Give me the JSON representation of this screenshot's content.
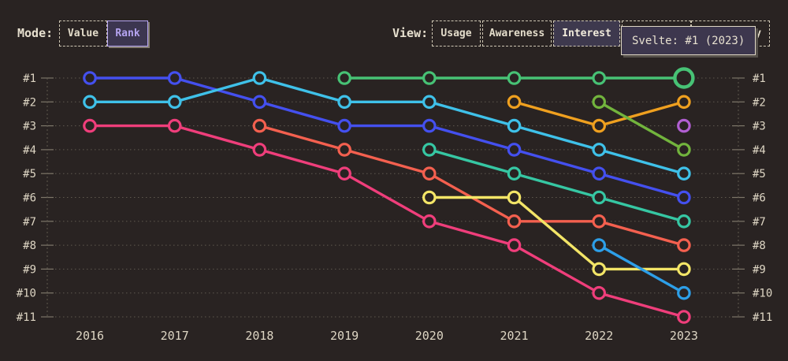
{
  "header": {
    "mode": {
      "label": "Mode:",
      "options": [
        {
          "label": "Value",
          "active": false
        },
        {
          "label": "Rank",
          "active": true
        }
      ]
    },
    "view": {
      "label": "View:",
      "options": [
        {
          "label": "Usage",
          "active": false
        },
        {
          "label": "Awareness",
          "active": false
        },
        {
          "label": "Interest",
          "active": true
        },
        {
          "label": "Retention",
          "active": false
        },
        {
          "label": "Positivity",
          "active": false
        }
      ]
    }
  },
  "tooltip": {
    "text": "Svelte: #1 (2023)"
  },
  "colors": {
    "background": "#292322",
    "text": "#ded6c4",
    "grid": "#5f594f",
    "tick": "#7d7669",
    "accent_purple": "#b5a4f1",
    "tooltip_bg": "#3d374e",
    "tooltip_border": "#ded6c4"
  },
  "chart_data": {
    "type": "line",
    "subtype": "bump-rank-chart",
    "x": [
      2016,
      2017,
      2018,
      2019,
      2020,
      2021,
      2022,
      2023
    ],
    "x_labels": [
      "2016",
      "2017",
      "2018",
      "2019",
      "2020",
      "2021",
      "2022",
      "2023"
    ],
    "y_tick_labels": [
      "#1",
      "#2",
      "#3",
      "#4",
      "#5",
      "#6",
      "#7",
      "#8",
      "#9",
      "#10",
      "#11"
    ],
    "ylim": [
      1,
      11
    ],
    "y_axis_inverted": true,
    "grid": "dotted horizontal rank lines, dotted vertical edge axes, double-sided rank labels",
    "legend_position": "none (hover tooltip only)",
    "highlight": {
      "series": "svelte-green",
      "year": 2023,
      "rank": 1,
      "tooltip": "Svelte: #1 (2023)"
    },
    "series": [
      {
        "id": "indigo",
        "color": "#4450ef",
        "points": [
          [
            2016,
            1
          ],
          [
            2017,
            1
          ],
          [
            2018,
            2
          ],
          [
            2019,
            3
          ],
          [
            2020,
            3
          ],
          [
            2021,
            4
          ],
          [
            2022,
            5
          ],
          [
            2023,
            6
          ]
        ]
      },
      {
        "id": "cyan",
        "color": "#3fc1e9",
        "points": [
          [
            2016,
            2
          ],
          [
            2017,
            2
          ],
          [
            2018,
            1
          ],
          [
            2019,
            2
          ],
          [
            2020,
            2
          ],
          [
            2021,
            3
          ],
          [
            2022,
            4
          ],
          [
            2023,
            5
          ]
        ]
      },
      {
        "id": "pink",
        "color": "#ef3e7b",
        "points": [
          [
            2016,
            3
          ],
          [
            2017,
            3
          ],
          [
            2018,
            4
          ],
          [
            2019,
            5
          ],
          [
            2020,
            7
          ],
          [
            2021,
            8
          ],
          [
            2022,
            10
          ],
          [
            2023,
            11
          ]
        ]
      },
      {
        "id": "salmon",
        "color": "#f4604f",
        "points": [
          [
            2018,
            3
          ],
          [
            2019,
            4
          ],
          [
            2020,
            5
          ],
          [
            2021,
            7
          ],
          [
            2022,
            7
          ],
          [
            2023,
            8
          ]
        ]
      },
      {
        "id": "orange",
        "color": "#efa01f",
        "points": [
          [
            2021,
            2
          ],
          [
            2022,
            3
          ],
          [
            2023,
            2
          ]
        ]
      },
      {
        "id": "lime",
        "color": "#72b43d",
        "points": [
          [
            2022,
            2
          ],
          [
            2023,
            4
          ]
        ]
      },
      {
        "id": "teal",
        "color": "#36c7a3",
        "points": [
          [
            2020,
            4
          ],
          [
            2021,
            5
          ],
          [
            2022,
            6
          ],
          [
            2023,
            7
          ]
        ]
      },
      {
        "id": "yellow",
        "color": "#f3e567",
        "points": [
          [
            2020,
            6
          ],
          [
            2021,
            6
          ],
          [
            2022,
            9
          ],
          [
            2023,
            9
          ]
        ]
      },
      {
        "id": "sky",
        "color": "#2d9fe8",
        "points": [
          [
            2022,
            8
          ],
          [
            2023,
            10
          ]
        ]
      },
      {
        "id": "purple",
        "color": "#b15fd2",
        "points": [
          [
            2023,
            3
          ]
        ]
      },
      {
        "id": "svelte-green",
        "name": "Svelte",
        "color": "#47c275",
        "points": [
          [
            2019,
            1
          ],
          [
            2020,
            1
          ],
          [
            2021,
            1
          ],
          [
            2022,
            1
          ],
          [
            2023,
            1
          ]
        ]
      }
    ]
  }
}
